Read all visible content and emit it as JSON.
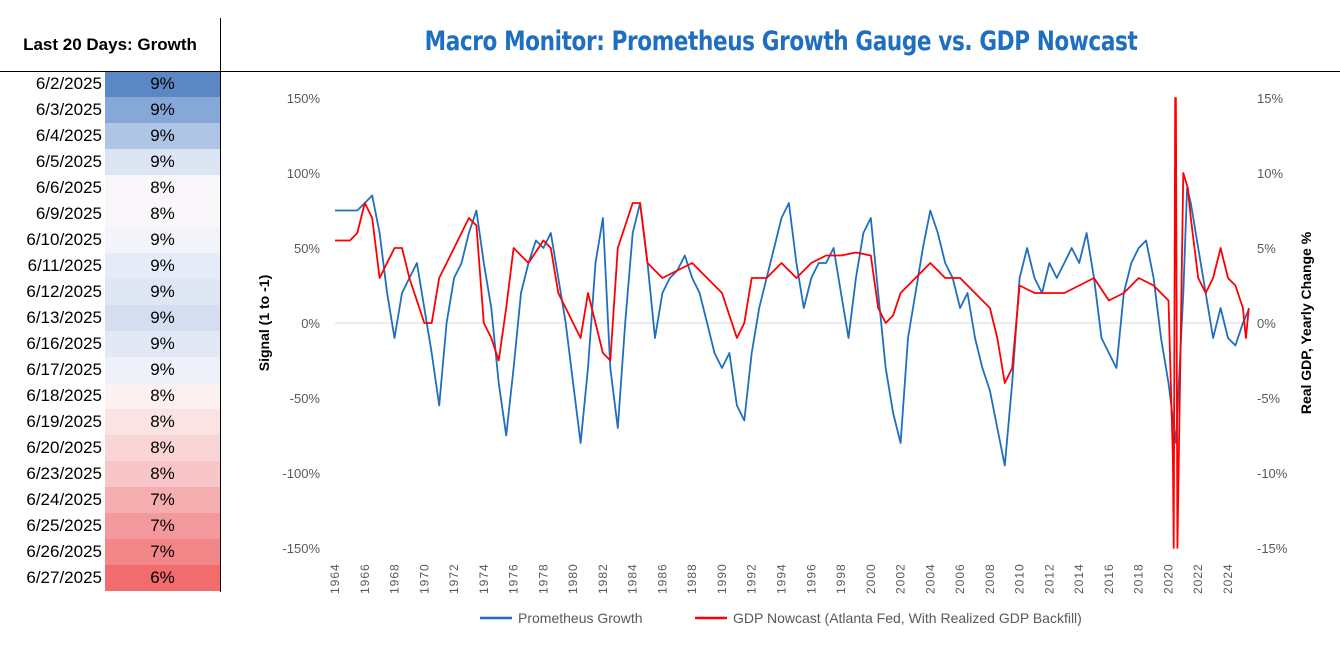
{
  "table": {
    "header": "Last 20 Days: Growth",
    "rows": [
      {
        "date": "6/2/2025",
        "value": "9%",
        "color": "#5b88c5"
      },
      {
        "date": "6/3/2025",
        "value": "9%",
        "color": "#86a8d8"
      },
      {
        "date": "6/4/2025",
        "value": "9%",
        "color": "#afc5e6"
      },
      {
        "date": "6/5/2025",
        "value": "9%",
        "color": "#dce5f3"
      },
      {
        "date": "6/6/2025",
        "value": "8%",
        "color": "#f9f7fa"
      },
      {
        "date": "6/9/2025",
        "value": "8%",
        "color": "#f9f7fa"
      },
      {
        "date": "6/10/2025",
        "value": "9%",
        "color": "#f2f4fa"
      },
      {
        "date": "6/11/2025",
        "value": "9%",
        "color": "#e6ecf7"
      },
      {
        "date": "6/12/2025",
        "value": "9%",
        "color": "#dfe6f4"
      },
      {
        "date": "6/13/2025",
        "value": "9%",
        "color": "#d4def0"
      },
      {
        "date": "6/16/2025",
        "value": "9%",
        "color": "#e2e9f5"
      },
      {
        "date": "6/17/2025",
        "value": "9%",
        "color": "#eef1f9"
      },
      {
        "date": "6/18/2025",
        "value": "8%",
        "color": "#fdf0f1"
      },
      {
        "date": "6/19/2025",
        "value": "8%",
        "color": "#fbe2e3"
      },
      {
        "date": "6/20/2025",
        "value": "8%",
        "color": "#f9d5d6"
      },
      {
        "date": "6/23/2025",
        "value": "8%",
        "color": "#f8c6c8"
      },
      {
        "date": "6/24/2025",
        "value": "7%",
        "color": "#f5aeb0"
      },
      {
        "date": "6/25/2025",
        "value": "7%",
        "color": "#f4999b"
      },
      {
        "date": "6/26/2025",
        "value": "7%",
        "color": "#f38688"
      },
      {
        "date": "6/27/2025",
        "value": "6%",
        "color": "#f26c6e"
      }
    ]
  },
  "chart_data": {
    "type": "line",
    "title": "Macro Monitor: Prometheus Growth Gauge vs. GDP Nowcast",
    "ylabel": "Signal (1 to -1)",
    "y2label": "Real GDP, Yearly Change %",
    "ylim": [
      -150,
      150
    ],
    "y2lim": [
      -15,
      15
    ],
    "xlim": [
      1964,
      2025.6
    ],
    "yticks": [
      "150%",
      "100%",
      "50%",
      "0%",
      "-50%",
      "-100%",
      "-150%"
    ],
    "y2ticks": [
      "15%",
      "10%",
      "5%",
      "0%",
      "-5%",
      "-10%",
      "-15%"
    ],
    "xticks": [
      "1964",
      "1966",
      "1968",
      "1970",
      "1972",
      "1974",
      "1976",
      "1978",
      "1980",
      "1982",
      "1984",
      "1986",
      "1988",
      "1990",
      "1992",
      "1994",
      "1996",
      "1998",
      "2000",
      "2002",
      "2004",
      "2006",
      "2008",
      "2010",
      "2012",
      "2014",
      "2016",
      "2018",
      "2020",
      "2022",
      "2024"
    ],
    "legend_position": "bottom",
    "series": [
      {
        "name": "Prometheus Growth",
        "color": "#1f6fc0",
        "axis": "left",
        "x": [
          1964,
          1965.5,
          1966,
          1966.5,
          1967,
          1967.5,
          1968,
          1968.5,
          1969,
          1969.5,
          1970,
          1970.5,
          1971,
          1971.5,
          1972,
          1972.5,
          1973,
          1973.5,
          1974,
          1974.5,
          1975,
          1975.5,
          1976,
          1976.5,
          1977,
          1977.5,
          1978,
          1978.5,
          1979,
          1979.5,
          1980,
          1980.5,
          1981,
          1981.5,
          1982,
          1982.5,
          1983,
          1983.5,
          1984,
          1984.5,
          1985,
          1985.5,
          1986,
          1986.5,
          1987,
          1987.5,
          1988,
          1988.5,
          1989,
          1989.5,
          1990,
          1990.5,
          1991,
          1991.5,
          1992,
          1992.5,
          1993,
          1993.5,
          1994,
          1994.5,
          1995,
          1995.5,
          1996,
          1996.5,
          1997,
          1997.5,
          1998,
          1998.5,
          1999,
          1999.5,
          2000,
          2000.5,
          2001,
          2001.5,
          2002,
          2002.5,
          2003,
          2003.5,
          2004,
          2004.5,
          2005,
          2005.5,
          2006,
          2006.5,
          2007,
          2007.5,
          2008,
          2008.5,
          2009,
          2009.5,
          2010,
          2010.5,
          2011,
          2011.5,
          2012,
          2012.5,
          2013,
          2013.5,
          2014,
          2014.5,
          2015,
          2015.5,
          2016,
          2016.5,
          2017,
          2017.5,
          2018,
          2018.5,
          2019,
          2019.5,
          2020,
          2020.5,
          2021,
          2021.25,
          2021.5,
          2022,
          2022.5,
          2023,
          2023.5,
          2024,
          2024.5,
          2025,
          2025.4
        ],
        "values": [
          75,
          75,
          80,
          85,
          60,
          20,
          -10,
          20,
          30,
          40,
          10,
          -20,
          -55,
          0,
          30,
          40,
          60,
          75,
          40,
          10,
          -40,
          -75,
          -30,
          20,
          40,
          55,
          50,
          60,
          30,
          0,
          -40,
          -80,
          -30,
          40,
          70,
          -30,
          -70,
          0,
          60,
          80,
          40,
          -10,
          20,
          30,
          35,
          45,
          30,
          20,
          0,
          -20,
          -30,
          -20,
          -55,
          -65,
          -20,
          10,
          30,
          50,
          70,
          80,
          40,
          10,
          30,
          40,
          40,
          50,
          20,
          -10,
          30,
          60,
          70,
          20,
          -30,
          -60,
          -80,
          -10,
          20,
          50,
          75,
          60,
          40,
          30,
          10,
          20,
          -10,
          -30,
          -45,
          -70,
          -95,
          -40,
          30,
          50,
          30,
          20,
          40,
          30,
          40,
          50,
          40,
          60,
          30,
          -10,
          -20,
          -30,
          20,
          40,
          50,
          55,
          30,
          -10,
          -40,
          -80,
          20,
          90,
          80,
          50,
          20,
          -10,
          10,
          -10,
          -15,
          0,
          9
        ]
      },
      {
        "name": "GDP Nowcast (Atlanta Fed, With Realized GDP Backfill)",
        "color": "#ff0000",
        "axis": "right",
        "x": [
          1964,
          1965,
          1965.5,
          1966,
          1966.5,
          1967,
          1968,
          1968.5,
          1969,
          1970,
          1970.5,
          1971,
          1972,
          1973,
          1973.5,
          1974,
          1974.5,
          1975,
          1975.5,
          1976,
          1977,
          1978,
          1978.5,
          1979,
          1980,
          1980.5,
          1981,
          1981.5,
          1982,
          1982.5,
          1983,
          1984,
          1984.5,
          1985,
          1986,
          1987,
          1988,
          1989,
          1990,
          1991,
          1991.5,
          1992,
          1993,
          1994,
          1995,
          1996,
          1997,
          1998,
          1999,
          2000,
          2000.5,
          2001,
          2001.5,
          2002,
          2003,
          2004,
          2005,
          2006,
          2007,
          2008,
          2008.5,
          2009,
          2009.5,
          2010,
          2011,
          2012,
          2013,
          2014,
          2015,
          2016,
          2017,
          2018,
          2019,
          2019.5,
          2020,
          2020.3,
          2020.35,
          2020.45,
          2020.5,
          2020.6,
          2021,
          2021.3,
          2021.5,
          2022,
          2022.5,
          2023,
          2023.5,
          2024,
          2024.5,
          2025,
          2025.2,
          2025.4
        ],
        "values": [
          5.5,
          5.5,
          6,
          8,
          7,
          3,
          5,
          5,
          3,
          0,
          0,
          3,
          5,
          7,
          6.5,
          0,
          -1,
          -2.5,
          1,
          5,
          4,
          5.5,
          5,
          2,
          0,
          -1,
          2,
          0,
          -2,
          -2.5,
          5,
          8,
          8,
          4,
          3,
          3.5,
          4,
          3,
          2,
          -1,
          0,
          3,
          3,
          4,
          3,
          4,
          4.5,
          4.5,
          4.7,
          4.5,
          1,
          0,
          0.5,
          2,
          3,
          4,
          3,
          3,
          2,
          1,
          -1,
          -4,
          -3,
          2.5,
          2,
          2,
          2,
          2.5,
          3,
          1.5,
          2,
          3,
          2.5,
          2,
          1.5,
          -9,
          -15,
          15,
          15,
          -15,
          10,
          9,
          7,
          3,
          2,
          3,
          5,
          3,
          2.5,
          1,
          -1,
          1
        ]
      }
    ]
  }
}
